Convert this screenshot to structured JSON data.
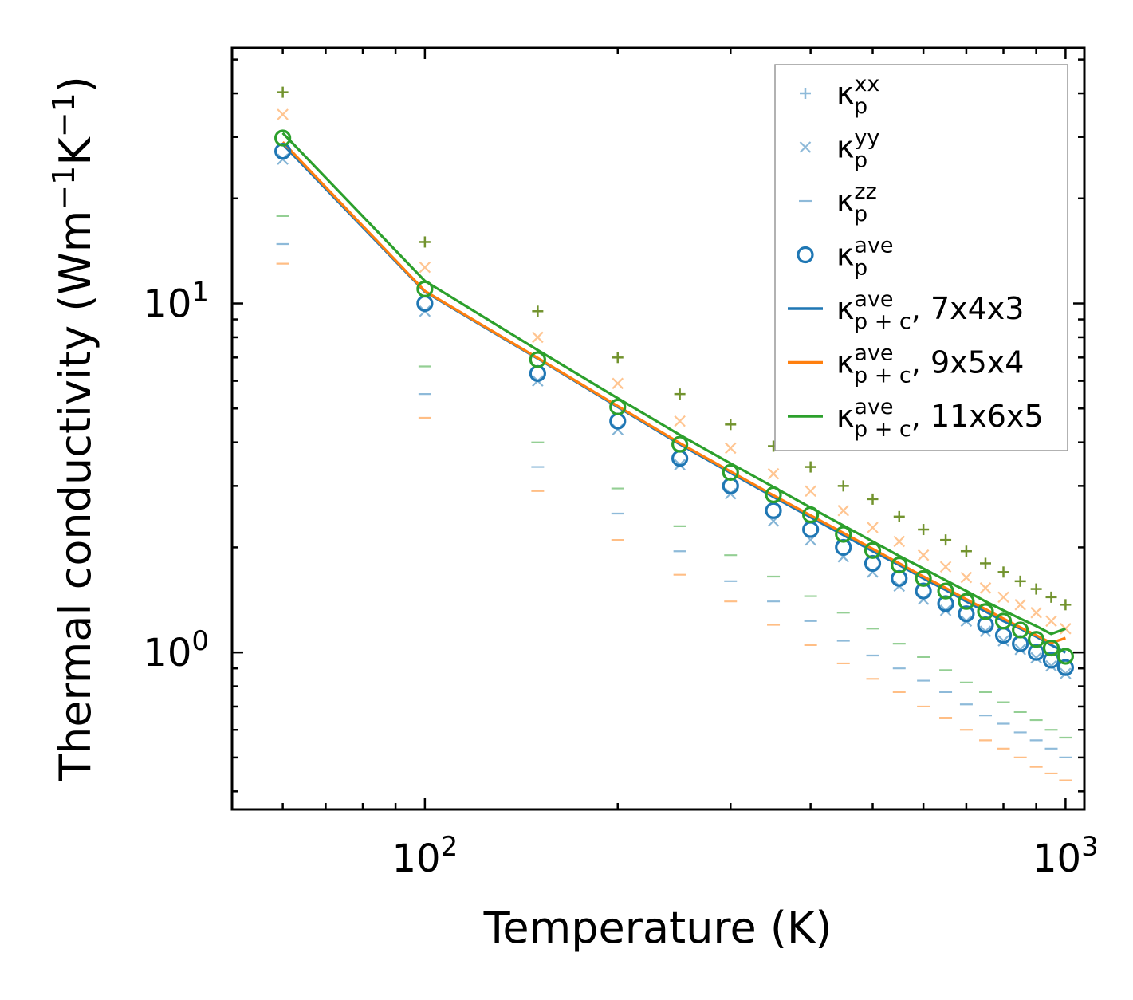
{
  "chart_data": {
    "type": "scatter",
    "scale": {
      "x": "log",
      "y": "log"
    },
    "xlim": [
      50,
      1070
    ],
    "ylim": [
      0.355,
      54
    ],
    "xlabel": "Temperature (K)",
    "ylabel": {
      "base": "Thermal conductivity (Wm",
      "exp1": "−1",
      "mid": "K",
      "exp2": "−1",
      "end": ")"
    },
    "x_ticks": [
      {
        "value": 100,
        "base": "10",
        "exp": "2"
      },
      {
        "value": 1000,
        "base": "10",
        "exp": "3"
      }
    ],
    "y_ticks": [
      {
        "value": 1,
        "base": "10",
        "exp": "0"
      },
      {
        "value": 10,
        "base": "10",
        "exp": "1"
      }
    ],
    "x": [
      60,
      100,
      150,
      200,
      250,
      300,
      350,
      400,
      450,
      500,
      550,
      600,
      650,
      700,
      750,
      800,
      850,
      900,
      950,
      1000
    ],
    "colors": {
      "blue": "#1f77b4",
      "orange": "#ff7f0e",
      "green": "#2ca02c",
      "olive": "#6b8e23"
    },
    "point_series": [
      {
        "name": "kxx_green",
        "marker": "plus",
        "color": "#6b8e23",
        "opacity": 0.95,
        "values": [
          40.3,
          15.0,
          9.5,
          7.0,
          5.5,
          4.5,
          3.9,
          3.4,
          3.0,
          2.75,
          2.45,
          2.25,
          2.1,
          1.95,
          1.8,
          1.7,
          1.6,
          1.52,
          1.44,
          1.37
        ]
      },
      {
        "name": "kyy_orange",
        "marker": "x",
        "color": "#ff7f0e",
        "opacity": 0.45,
        "values": [
          34.8,
          12.7,
          8.0,
          5.9,
          4.6,
          3.85,
          3.25,
          2.9,
          2.55,
          2.28,
          2.08,
          1.9,
          1.76,
          1.64,
          1.53,
          1.44,
          1.37,
          1.3,
          1.23,
          1.17
        ]
      },
      {
        "name": "kyy_blue",
        "marker": "x",
        "color": "#1f77b4",
        "opacity": 0.55,
        "values": [
          25.9,
          9.5,
          6.0,
          4.35,
          3.45,
          2.85,
          2.38,
          2.1,
          1.88,
          1.7,
          1.55,
          1.42,
          1.32,
          1.23,
          1.15,
          1.08,
          1.02,
          0.965,
          0.915,
          0.87
        ]
      },
      {
        "name": "kzz_green",
        "marker": "dash",
        "color": "#2ca02c",
        "opacity": 0.5,
        "values": [
          17.8,
          6.6,
          4.0,
          2.95,
          2.3,
          1.9,
          1.65,
          1.45,
          1.3,
          1.17,
          1.06,
          0.97,
          0.89,
          0.82,
          0.77,
          0.72,
          0.675,
          0.64,
          0.6,
          0.57
        ]
      },
      {
        "name": "kzz_blue",
        "marker": "dash",
        "color": "#1f77b4",
        "opacity": 0.5,
        "values": [
          14.8,
          5.5,
          3.4,
          2.5,
          1.95,
          1.6,
          1.4,
          1.23,
          1.08,
          0.98,
          0.9,
          0.83,
          0.77,
          0.71,
          0.66,
          0.625,
          0.59,
          0.56,
          0.53,
          0.5
        ]
      },
      {
        "name": "kzz_orange",
        "marker": "dash",
        "color": "#ff7f0e",
        "opacity": 0.5,
        "values": [
          13.0,
          4.7,
          2.9,
          2.1,
          1.67,
          1.4,
          1.2,
          1.05,
          0.93,
          0.84,
          0.77,
          0.7,
          0.65,
          0.6,
          0.56,
          0.53,
          0.5,
          0.47,
          0.45,
          0.43
        ]
      },
      {
        "name": "kave_blue",
        "marker": "circle",
        "color": "#1f77b4",
        "opacity": 1,
        "values": [
          27.3,
          10.0,
          6.3,
          4.6,
          3.6,
          3.0,
          2.55,
          2.25,
          2.0,
          1.8,
          1.63,
          1.5,
          1.38,
          1.29,
          1.2,
          1.12,
          1.06,
          1.0,
          0.95,
          0.905
        ]
      },
      {
        "name": "kave_green",
        "marker": "circle",
        "color": "#2ca02c",
        "opacity": 1,
        "values": [
          29.8,
          11.0,
          6.9,
          5.05,
          3.95,
          3.28,
          2.83,
          2.48,
          2.18,
          1.96,
          1.78,
          1.63,
          1.5,
          1.4,
          1.31,
          1.23,
          1.16,
          1.09,
          1.03,
          0.975
        ]
      }
    ],
    "line_series": [
      {
        "name": "kappa_p+c_7x4x3",
        "color": "#1f77b4",
        "values": [
          28.6,
          10.8,
          6.95,
          5.05,
          3.95,
          3.27,
          2.79,
          2.44,
          2.17,
          1.95,
          1.78,
          1.63,
          1.51,
          1.4,
          1.31,
          1.23,
          1.17,
          1.11,
          1.05,
          1.0
        ]
      },
      {
        "name": "kappa_p+c_9x5x4",
        "color": "#ff7f0e",
        "values": [
          29.0,
          10.85,
          6.98,
          5.08,
          3.98,
          3.3,
          2.82,
          2.47,
          2.2,
          1.98,
          1.8,
          1.65,
          1.53,
          1.42,
          1.33,
          1.25,
          1.18,
          1.12,
          1.065,
          1.1
        ]
      },
      {
        "name": "kappa_p+c_11x6x5",
        "color": "#2ca02c",
        "values": [
          30.8,
          11.6,
          7.35,
          5.35,
          4.2,
          3.48,
          2.98,
          2.6,
          2.31,
          2.08,
          1.89,
          1.74,
          1.61,
          1.5,
          1.4,
          1.32,
          1.25,
          1.19,
          1.13,
          1.17
        ]
      }
    ],
    "legend": {
      "position": "top-right",
      "entries": [
        {
          "marker": "plus",
          "color": "#1f77b4",
          "sym": "κ",
          "sub": "p",
          "sup": "xx",
          "tail": ""
        },
        {
          "marker": "x",
          "color": "#1f77b4",
          "sym": "κ",
          "sub": "p",
          "sup": "yy",
          "tail": ""
        },
        {
          "marker": "dash",
          "color": "#1f77b4",
          "sym": "κ",
          "sub": "p",
          "sup": "zz",
          "tail": ""
        },
        {
          "marker": "circle",
          "color": "#1f77b4",
          "sym": "κ",
          "sub": "p",
          "sup": "ave",
          "tail": ""
        },
        {
          "marker": "line",
          "color": "#1f77b4",
          "sym": "κ",
          "sub": "p + c",
          "sup": "ave",
          "tail": ", 7x4x3"
        },
        {
          "marker": "line",
          "color": "#ff7f0e",
          "sym": "κ",
          "sub": "p + c",
          "sup": "ave",
          "tail": ", 9x5x4"
        },
        {
          "marker": "line",
          "color": "#2ca02c",
          "sym": "κ",
          "sub": "p + c",
          "sup": "ave",
          "tail": ", 11x6x5"
        }
      ]
    }
  }
}
